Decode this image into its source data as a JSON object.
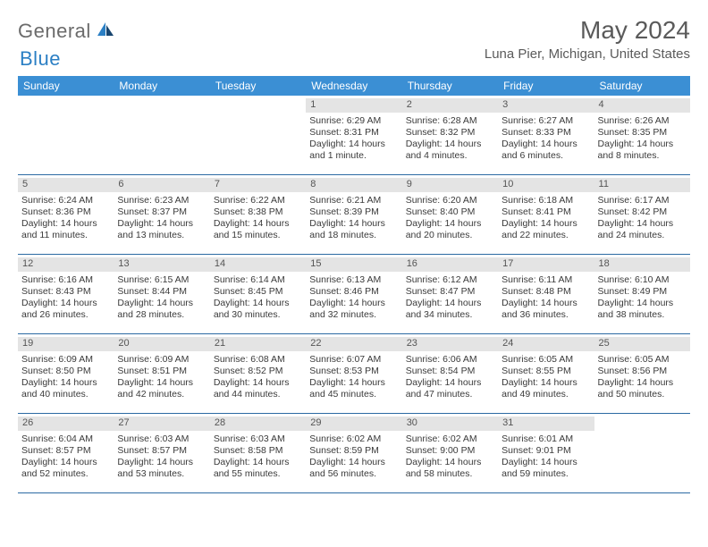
{
  "logo": {
    "general": "General",
    "blue": "Blue"
  },
  "title": "May 2024",
  "location": "Luna Pier, Michigan, United States",
  "colors": {
    "header_bg": "#3b8fd4",
    "header_text": "#ffffff",
    "day_header_bg": "#e4e4e4",
    "row_border": "#2b6aa3",
    "logo_gray": "#6b6b6b",
    "logo_blue": "#2b7fc4",
    "body_text": "#3a3a3a"
  },
  "weekdays": [
    "Sunday",
    "Monday",
    "Tuesday",
    "Wednesday",
    "Thursday",
    "Friday",
    "Saturday"
  ],
  "weeks": [
    [
      null,
      null,
      null,
      {
        "n": "1",
        "sunrise": "6:29 AM",
        "sunset": "8:31 PM",
        "daylight": "14 hours and 1 minute."
      },
      {
        "n": "2",
        "sunrise": "6:28 AM",
        "sunset": "8:32 PM",
        "daylight": "14 hours and 4 minutes."
      },
      {
        "n": "3",
        "sunrise": "6:27 AM",
        "sunset": "8:33 PM",
        "daylight": "14 hours and 6 minutes."
      },
      {
        "n": "4",
        "sunrise": "6:26 AM",
        "sunset": "8:35 PM",
        "daylight": "14 hours and 8 minutes."
      }
    ],
    [
      {
        "n": "5",
        "sunrise": "6:24 AM",
        "sunset": "8:36 PM",
        "daylight": "14 hours and 11 minutes."
      },
      {
        "n": "6",
        "sunrise": "6:23 AM",
        "sunset": "8:37 PM",
        "daylight": "14 hours and 13 minutes."
      },
      {
        "n": "7",
        "sunrise": "6:22 AM",
        "sunset": "8:38 PM",
        "daylight": "14 hours and 15 minutes."
      },
      {
        "n": "8",
        "sunrise": "6:21 AM",
        "sunset": "8:39 PM",
        "daylight": "14 hours and 18 minutes."
      },
      {
        "n": "9",
        "sunrise": "6:20 AM",
        "sunset": "8:40 PM",
        "daylight": "14 hours and 20 minutes."
      },
      {
        "n": "10",
        "sunrise": "6:18 AM",
        "sunset": "8:41 PM",
        "daylight": "14 hours and 22 minutes."
      },
      {
        "n": "11",
        "sunrise": "6:17 AM",
        "sunset": "8:42 PM",
        "daylight": "14 hours and 24 minutes."
      }
    ],
    [
      {
        "n": "12",
        "sunrise": "6:16 AM",
        "sunset": "8:43 PM",
        "daylight": "14 hours and 26 minutes."
      },
      {
        "n": "13",
        "sunrise": "6:15 AM",
        "sunset": "8:44 PM",
        "daylight": "14 hours and 28 minutes."
      },
      {
        "n": "14",
        "sunrise": "6:14 AM",
        "sunset": "8:45 PM",
        "daylight": "14 hours and 30 minutes."
      },
      {
        "n": "15",
        "sunrise": "6:13 AM",
        "sunset": "8:46 PM",
        "daylight": "14 hours and 32 minutes."
      },
      {
        "n": "16",
        "sunrise": "6:12 AM",
        "sunset": "8:47 PM",
        "daylight": "14 hours and 34 minutes."
      },
      {
        "n": "17",
        "sunrise": "6:11 AM",
        "sunset": "8:48 PM",
        "daylight": "14 hours and 36 minutes."
      },
      {
        "n": "18",
        "sunrise": "6:10 AM",
        "sunset": "8:49 PM",
        "daylight": "14 hours and 38 minutes."
      }
    ],
    [
      {
        "n": "19",
        "sunrise": "6:09 AM",
        "sunset": "8:50 PM",
        "daylight": "14 hours and 40 minutes."
      },
      {
        "n": "20",
        "sunrise": "6:09 AM",
        "sunset": "8:51 PM",
        "daylight": "14 hours and 42 minutes."
      },
      {
        "n": "21",
        "sunrise": "6:08 AM",
        "sunset": "8:52 PM",
        "daylight": "14 hours and 44 minutes."
      },
      {
        "n": "22",
        "sunrise": "6:07 AM",
        "sunset": "8:53 PM",
        "daylight": "14 hours and 45 minutes."
      },
      {
        "n": "23",
        "sunrise": "6:06 AM",
        "sunset": "8:54 PM",
        "daylight": "14 hours and 47 minutes."
      },
      {
        "n": "24",
        "sunrise": "6:05 AM",
        "sunset": "8:55 PM",
        "daylight": "14 hours and 49 minutes."
      },
      {
        "n": "25",
        "sunrise": "6:05 AM",
        "sunset": "8:56 PM",
        "daylight": "14 hours and 50 minutes."
      }
    ],
    [
      {
        "n": "26",
        "sunrise": "6:04 AM",
        "sunset": "8:57 PM",
        "daylight": "14 hours and 52 minutes."
      },
      {
        "n": "27",
        "sunrise": "6:03 AM",
        "sunset": "8:57 PM",
        "daylight": "14 hours and 53 minutes."
      },
      {
        "n": "28",
        "sunrise": "6:03 AM",
        "sunset": "8:58 PM",
        "daylight": "14 hours and 55 minutes."
      },
      {
        "n": "29",
        "sunrise": "6:02 AM",
        "sunset": "8:59 PM",
        "daylight": "14 hours and 56 minutes."
      },
      {
        "n": "30",
        "sunrise": "6:02 AM",
        "sunset": "9:00 PM",
        "daylight": "14 hours and 58 minutes."
      },
      {
        "n": "31",
        "sunrise": "6:01 AM",
        "sunset": "9:01 PM",
        "daylight": "14 hours and 59 minutes."
      },
      null
    ]
  ],
  "labels": {
    "sunrise": "Sunrise:",
    "sunset": "Sunset:",
    "daylight": "Daylight:"
  }
}
